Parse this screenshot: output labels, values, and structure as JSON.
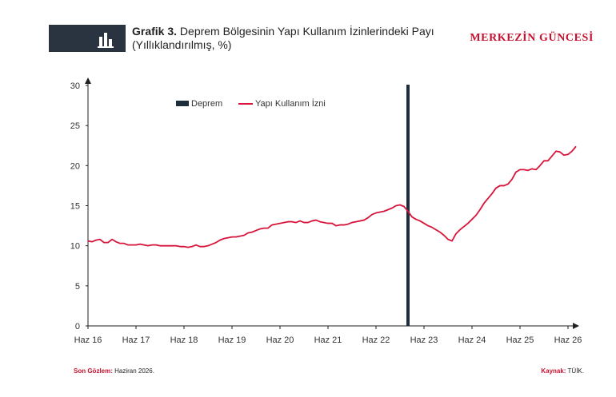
{
  "header": {
    "title_bold": "Grafik 3.",
    "title_rest": " Deprem Bölgesinin Yapı Kullanım İzinlerindeki Payı (Yıllıklandırılmış, %)",
    "brand": "MERKEZİN GÜNCESİ",
    "badge_icon": "bar-chart-icon"
  },
  "chart_data": {
    "type": "line",
    "title": "",
    "xlabel": "",
    "ylabel": "",
    "ylim": [
      0,
      30
    ],
    "yticks": [
      "0",
      "5",
      "10",
      "15",
      "20",
      "25",
      "30"
    ],
    "xticks": [
      "Haz 16",
      "Haz 17",
      "Haz 18",
      "Haz 19",
      "Haz 20",
      "Haz 21",
      "Haz 22",
      "Haz 23",
      "Haz 24",
      "Haz 25",
      "Haz 26"
    ],
    "grid": false,
    "legend_position": "top-center",
    "event": {
      "name": "Deprem",
      "x_index": 80,
      "color": "#1f2d3a"
    },
    "series": [
      {
        "name": "Yapı Kullanım İzni",
        "color": "#d7153a",
        "x_start": "Haz 16",
        "frequency": "monthly",
        "values": [
          10.6,
          10.5,
          10.7,
          10.8,
          10.4,
          10.4,
          10.8,
          10.5,
          10.3,
          10.3,
          10.1,
          10.1,
          10.1,
          10.2,
          10.1,
          10.0,
          10.1,
          10.1,
          10.0,
          10.0,
          10.0,
          10.0,
          10.0,
          9.9,
          9.9,
          9.8,
          9.9,
          10.1,
          9.9,
          9.9,
          10.0,
          10.2,
          10.4,
          10.7,
          10.9,
          11.0,
          11.1,
          11.1,
          11.2,
          11.3,
          11.6,
          11.7,
          11.9,
          12.1,
          12.2,
          12.2,
          12.6,
          12.7,
          12.8,
          12.9,
          13.0,
          13.0,
          12.9,
          13.1,
          12.9,
          12.9,
          13.1,
          13.2,
          13.0,
          12.9,
          12.8,
          12.8,
          12.5,
          12.6,
          12.6,
          12.7,
          12.9,
          13.0,
          13.1,
          13.2,
          13.5,
          13.9,
          14.1,
          14.2,
          14.3,
          14.5,
          14.7,
          15.0,
          15.1,
          14.9,
          14.3,
          13.6,
          13.3,
          13.1,
          12.8,
          12.5,
          12.3,
          12.0,
          11.7,
          11.3,
          10.8,
          10.6,
          11.5,
          12.0,
          12.4,
          12.8,
          13.3,
          13.8,
          14.5,
          15.3,
          15.9,
          16.5,
          17.2,
          17.5,
          17.5,
          17.7,
          18.3,
          19.2,
          19.5,
          19.5,
          19.4,
          19.6,
          19.5,
          20.0,
          20.6,
          20.6,
          21.2,
          21.8,
          21.7,
          21.3,
          21.4,
          21.8,
          22.4
        ]
      }
    ]
  },
  "footer": {
    "left_label": "Son Gözlem:",
    "left_value": " Haziran 2026.",
    "right_label": "Kaynak:",
    "right_value": " TÜİK."
  }
}
